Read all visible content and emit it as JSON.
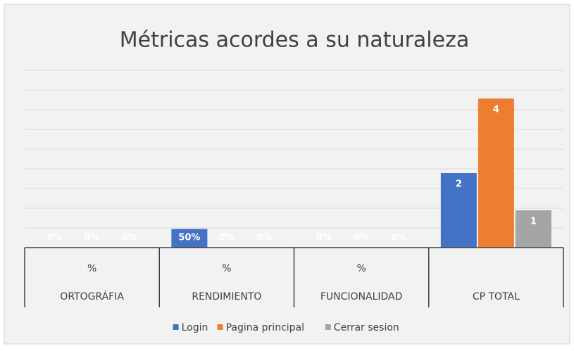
{
  "chart_data": {
    "type": "bar",
    "title": "Métricas acordes a su naturaleza",
    "categories": [
      [
        "%",
        "ORTOGRÁFIA"
      ],
      [
        "%",
        "RENDIMIENTO"
      ],
      [
        "%",
        "FUNCIONALIDAD"
      ],
      [
        null,
        "CP TOTAL"
      ]
    ],
    "series": [
      {
        "name": "Login",
        "color": "#4472c4",
        "values": [
          0,
          0.5,
          0,
          2
        ],
        "value_labels": [
          "0%",
          "50%",
          "0%",
          "2"
        ]
      },
      {
        "name": "Pagina principal",
        "color": "#ed7d31",
        "values": [
          0,
          0,
          0,
          4
        ],
        "value_labels": [
          "0%",
          "0%",
          "0%",
          "4"
        ]
      },
      {
        "name": "Cerrar sesion",
        "color": "#a5a5a5",
        "values": [
          0,
          0,
          0,
          1
        ],
        "value_labels": [
          "0%",
          "0%",
          "0%",
          "1"
        ]
      }
    ],
    "ylim": [
      0,
      5
    ],
    "legend": "bottom"
  }
}
